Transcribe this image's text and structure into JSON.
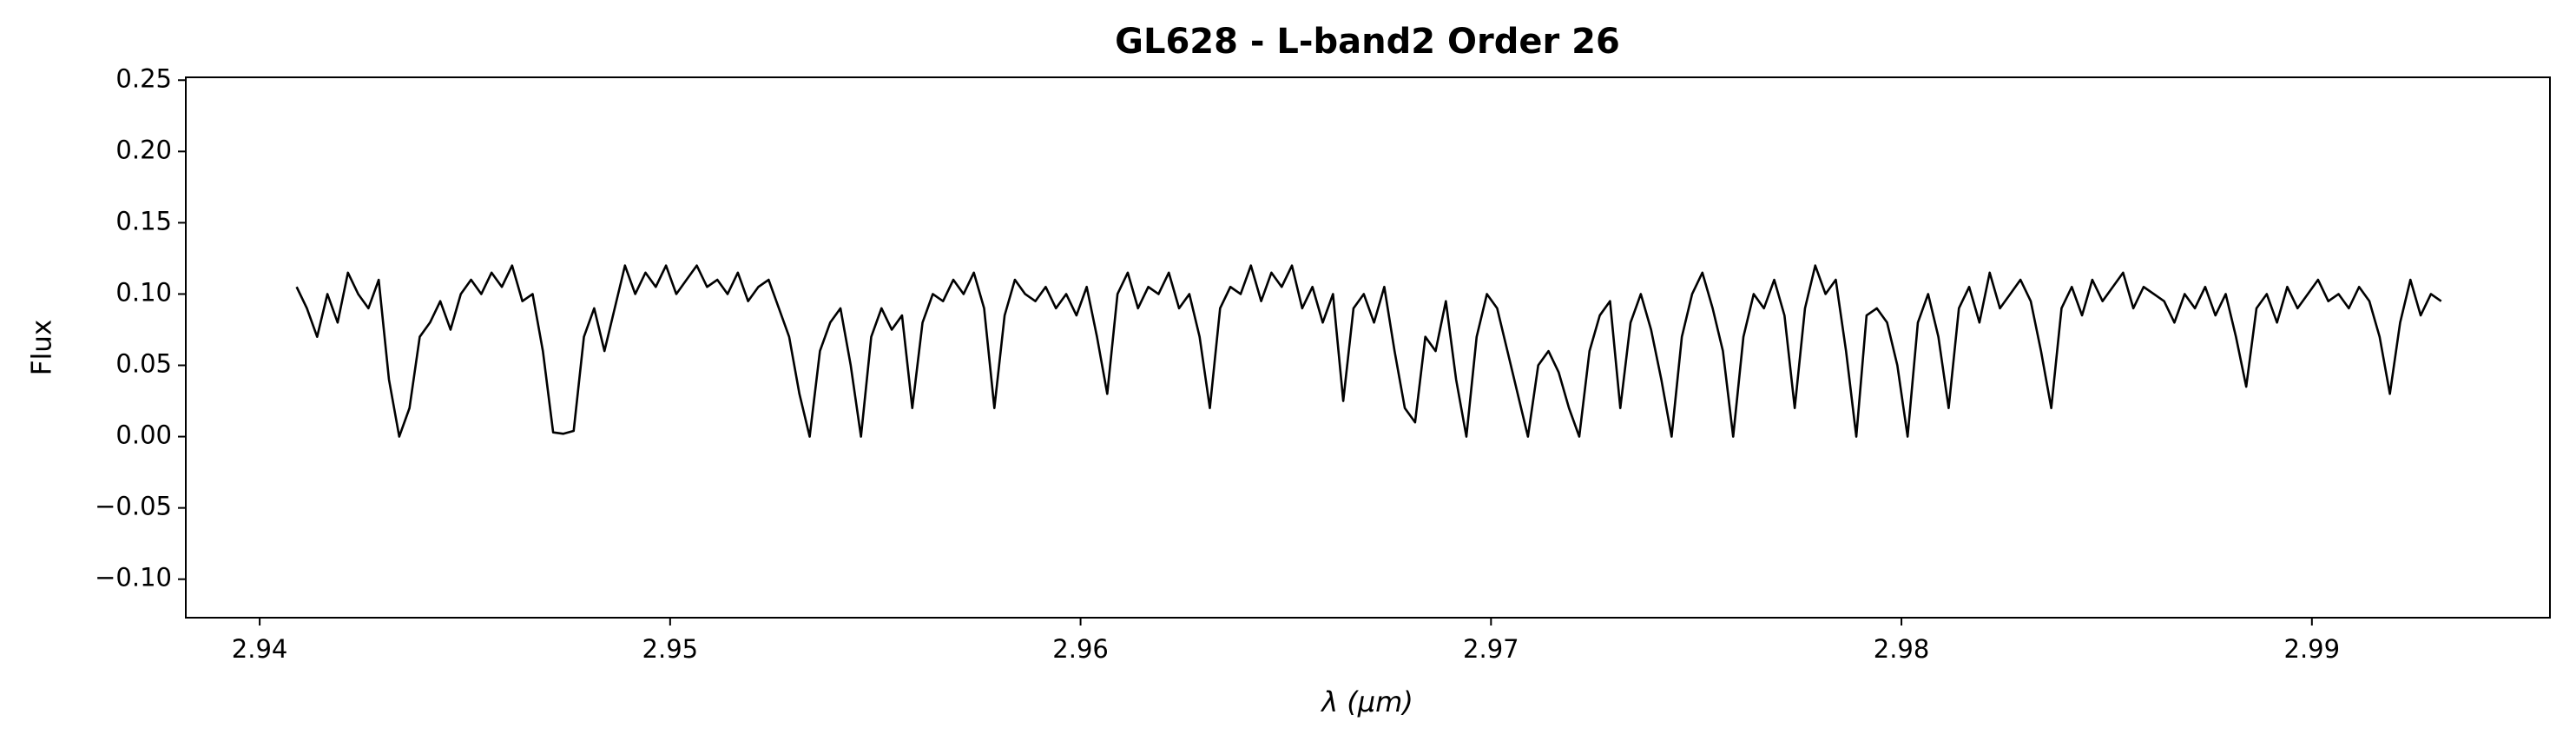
{
  "chart_data": {
    "type": "line",
    "title": "GL628 - L-band2 Order 26",
    "xlabel": "λ (μm)",
    "ylabel": "Flux",
    "color": "#000000",
    "xlim": [
      2.9382,
      2.9958
    ],
    "ylim": [
      -0.127,
      0.252
    ],
    "xticks": [
      2.94,
      2.95,
      2.96,
      2.97,
      2.98,
      2.99
    ],
    "yticks": [
      {
        "value": -0.1,
        "label": "−0.10"
      },
      {
        "value": -0.05,
        "label": "−0.05"
      },
      {
        "value": 0,
        "label": "0.00"
      },
      {
        "value": 0.05,
        "label": "0.05"
      },
      {
        "value": 0.1,
        "label": "0.10"
      },
      {
        "value": 0.15,
        "label": "0.15"
      },
      {
        "value": 0.2,
        "label": "0.20"
      },
      0.25
    ],
    "x": [
      2.9409,
      2.94115,
      2.9414,
      2.94165,
      2.9419,
      2.94215,
      2.9424,
      2.94265,
      2.9429,
      2.94315,
      2.9434,
      2.94365,
      2.9439,
      2.94415,
      2.9444,
      2.94465,
      2.9449,
      2.94515,
      2.9454,
      2.94565,
      2.9459,
      2.94615,
      2.9464,
      2.94665,
      2.9469,
      2.94715,
      2.9474,
      2.94765,
      2.9479,
      2.94815,
      2.9484,
      2.94865,
      2.9489,
      2.94915,
      2.9494,
      2.94965,
      2.9499,
      2.95015,
      2.9504,
      2.95065,
      2.9509,
      2.95115,
      2.9514,
      2.95165,
      2.9519,
      2.95215,
      2.9524,
      2.95265,
      2.9529,
      2.95315,
      2.9534,
      2.95365,
      2.9539,
      2.95415,
      2.9544,
      2.95465,
      2.9549,
      2.95515,
      2.9554,
      2.95565,
      2.9559,
      2.95615,
      2.9564,
      2.95665,
      2.9569,
      2.95715,
      2.9574,
      2.95765,
      2.9579,
      2.95815,
      2.9584,
      2.95865,
      2.9589,
      2.95915,
      2.9594,
      2.95965,
      2.9599,
      2.96015,
      2.9604,
      2.96065,
      2.9609,
      2.96115,
      2.9614,
      2.96165,
      2.9619,
      2.96215,
      2.9624,
      2.96265,
      2.9629,
      2.96315,
      2.9634,
      2.96365,
      2.9639,
      2.96415,
      2.9644,
      2.96465,
      2.9649,
      2.96515,
      2.9654,
      2.96565,
      2.9659,
      2.96615,
      2.9664,
      2.96665,
      2.9669,
      2.96715,
      2.9674,
      2.96765,
      2.9679,
      2.96815,
      2.9684,
      2.96865,
      2.9689,
      2.96915,
      2.9694,
      2.96965,
      2.9699,
      2.97015,
      2.9704,
      2.97065,
      2.9709,
      2.97115,
      2.9714,
      2.97165,
      2.9719,
      2.97215,
      2.9724,
      2.97265,
      2.9729,
      2.97315,
      2.9734,
      2.97365,
      2.9739,
      2.97415,
      2.9744,
      2.97465,
      2.9749,
      2.97515,
      2.9754,
      2.97565,
      2.9759,
      2.97615,
      2.9764,
      2.97665,
      2.9769,
      2.97715,
      2.9774,
      2.97765,
      2.9779,
      2.97815,
      2.9784,
      2.97865,
      2.9789,
      2.97915,
      2.9794,
      2.97965,
      2.9799,
      2.98015,
      2.9804,
      2.98065,
      2.9809,
      2.98115,
      2.9814,
      2.98165,
      2.9819,
      2.98215,
      2.9824,
      2.98265,
      2.9829,
      2.98315,
      2.9834,
      2.98365,
      2.9839,
      2.98415,
      2.9844,
      2.98465,
      2.9849,
      2.98515,
      2.9854,
      2.98565,
      2.9859,
      2.98615,
      2.9864,
      2.98665,
      2.9869,
      2.98715,
      2.9874,
      2.98765,
      2.9879,
      2.98815,
      2.9884,
      2.98865,
      2.9889,
      2.98915,
      2.9894,
      2.98965,
      2.9899,
      2.99015,
      2.9904,
      2.99065,
      2.9909,
      2.99115,
      2.9914,
      2.99165,
      2.9919,
      2.99215,
      2.9924,
      2.99265,
      2.9929,
      2.99315
    ],
    "values": [
      0.105,
      0.09,
      0.07,
      0.1,
      0.08,
      0.115,
      0.1,
      0.09,
      0.11,
      0.04,
      0.0,
      0.02,
      0.07,
      0.08,
      0.095,
      0.075,
      0.1,
      0.11,
      0.1,
      0.115,
      0.105,
      0.12,
      0.095,
      0.1,
      0.06,
      0.003,
      0.002,
      0.004,
      0.07,
      0.09,
      0.06,
      0.09,
      0.12,
      0.1,
      0.115,
      0.105,
      0.12,
      0.1,
      0.11,
      0.12,
      0.105,
      0.11,
      0.1,
      0.115,
      0.095,
      0.105,
      0.11,
      0.09,
      0.07,
      0.03,
      0.0,
      0.06,
      0.08,
      0.09,
      0.05,
      0.0,
      0.07,
      0.09,
      0.075,
      0.085,
      0.02,
      0.08,
      0.1,
      0.095,
      0.11,
      0.1,
      0.115,
      0.09,
      0.02,
      0.085,
      0.11,
      0.1,
      0.095,
      0.105,
      0.09,
      0.1,
      0.085,
      0.105,
      0.07,
      0.03,
      0.1,
      0.115,
      0.09,
      0.105,
      0.1,
      0.115,
      0.09,
      0.1,
      0.07,
      0.02,
      0.09,
      0.105,
      0.1,
      0.12,
      0.095,
      0.115,
      0.105,
      0.12,
      0.09,
      0.105,
      0.08,
      0.1,
      0.025,
      0.09,
      0.1,
      0.08,
      0.105,
      0.06,
      0.02,
      0.01,
      0.07,
      0.06,
      0.095,
      0.04,
      0.0,
      0.07,
      0.1,
      0.09,
      0.06,
      0.03,
      0.0,
      0.05,
      0.06,
      0.045,
      0.02,
      0.0,
      0.06,
      0.085,
      0.095,
      0.02,
      0.08,
      0.1,
      0.075,
      0.04,
      0.0,
      0.07,
      0.1,
      0.115,
      0.09,
      0.06,
      0.0,
      0.07,
      0.1,
      0.09,
      0.11,
      0.085,
      0.02,
      0.09,
      0.12,
      0.1,
      0.11,
      0.06,
      0.0,
      0.085,
      0.09,
      0.08,
      0.05,
      0.0,
      0.08,
      0.1,
      0.07,
      0.02,
      0.09,
      0.105,
      0.08,
      0.115,
      0.09,
      0.1,
      0.11,
      0.095,
      0.06,
      0.02,
      0.09,
      0.105,
      0.085,
      0.11,
      0.095,
      0.105,
      0.115,
      0.09,
      0.105,
      0.1,
      0.095,
      0.08,
      0.1,
      0.09,
      0.105,
      0.085,
      0.1,
      0.07,
      0.035,
      0.09,
      0.1,
      0.08,
      0.105,
      0.09,
      0.1,
      0.11,
      0.095,
      0.1,
      0.09,
      0.105,
      0.095,
      0.07,
      0.03,
      0.08,
      0.11,
      0.085,
      0.1,
      0.095
    ]
  }
}
